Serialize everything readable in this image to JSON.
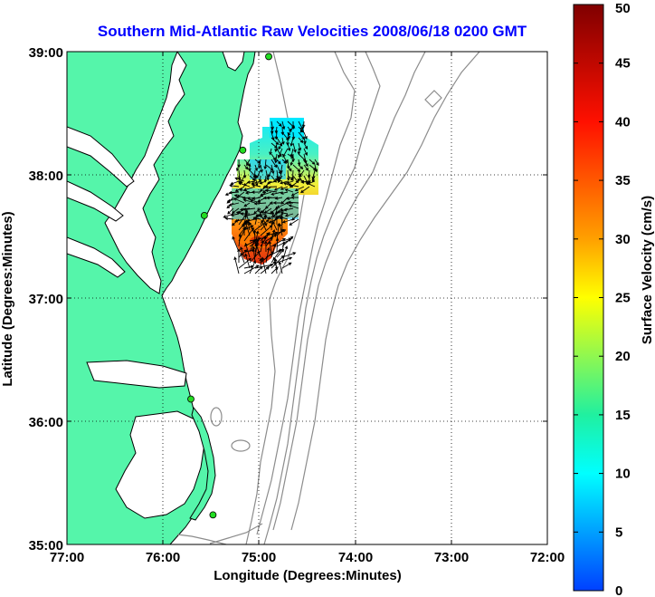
{
  "title": "Southern Mid-Atlantic Raw Velocities 2008/06/18 0200 GMT",
  "x_axis": {
    "label": "Longitude (Degrees:Minutes)",
    "ticks": [
      "77:00",
      "76:00",
      "75:00",
      "74:00",
      "73:00",
      "72:00"
    ],
    "range_deg_west": [
      77,
      72
    ]
  },
  "y_axis": {
    "label": "Latitude (Degrees:Minutes)",
    "ticks": [
      "35:00",
      "36:00",
      "37:00",
      "38:00",
      "39:00"
    ],
    "range_deg_north": [
      35,
      39
    ]
  },
  "colorbar": {
    "label": "Surface Velocity (cm/s)",
    "ticks": [
      "0",
      "5",
      "10",
      "15",
      "20",
      "25",
      "30",
      "35",
      "40",
      "45",
      "50"
    ],
    "range": [
      0,
      50
    ]
  },
  "colors": {
    "land": "#55f5aa",
    "water": "#ffffff",
    "coastline": "#000000",
    "bathymetry": "#8c8c8c",
    "title": "#0000ff",
    "station": "#22dd22"
  },
  "stations": [
    {
      "lon": 74.9,
      "lat": 38.96
    },
    {
      "lon": 75.17,
      "lat": 38.2
    },
    {
      "lon": 75.57,
      "lat": 37.67
    },
    {
      "lon": 75.71,
      "lat": 36.18
    },
    {
      "lon": 75.48,
      "lat": 35.24
    }
  ]
}
